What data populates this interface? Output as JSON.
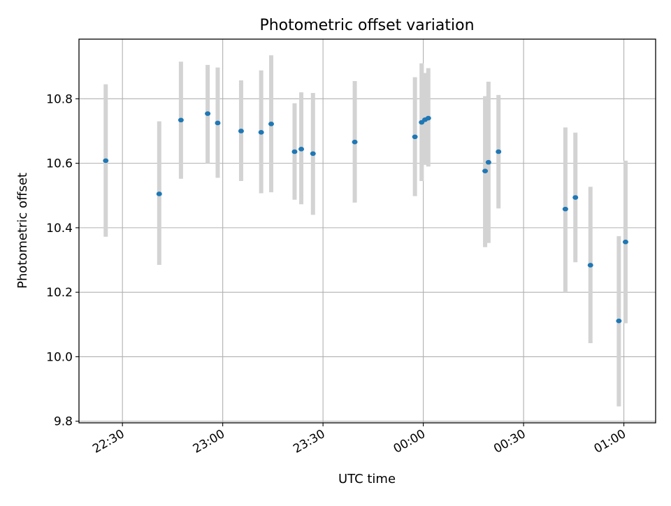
{
  "chart_data": {
    "type": "scatter",
    "title": "Photometric offset variation",
    "xlabel": "UTC time",
    "ylabel": "Photometric offset",
    "x_axis_type": "time",
    "xlim": [
      "22:17:00",
      "01:09:30"
    ],
    "ylim": [
      9.795,
      10.985
    ],
    "x_ticks": [
      {
        "time": "22:30:00",
        "label": "22:30"
      },
      {
        "time": "23:00:00",
        "label": "23:00"
      },
      {
        "time": "23:30:00",
        "label": "23:30"
      },
      {
        "time": "00:00:00",
        "label": "00:00"
      },
      {
        "time": "00:30:00",
        "label": "00:30"
      },
      {
        "time": "01:00:00",
        "label": "01:00"
      }
    ],
    "y_ticks": [
      {
        "value": 9.8,
        "label": "9.8"
      },
      {
        "value": 10.0,
        "label": "10.0"
      },
      {
        "value": 10.2,
        "label": "10.2"
      },
      {
        "value": 10.4,
        "label": "10.4"
      },
      {
        "value": 10.6,
        "label": "10.6"
      },
      {
        "value": 10.8,
        "label": "10.8"
      }
    ],
    "grid": true,
    "x_tick_rotation_deg": -30,
    "series": [
      {
        "marker_color": "#1f77b4",
        "errorbar_color": "#d3d3d3",
        "points": [
          {
            "time": "22:25:00",
            "y": 10.608,
            "yerr_low": 10.372,
            "yerr_high": 10.845
          },
          {
            "time": "22:41:00",
            "y": 10.505,
            "yerr_low": 10.285,
            "yerr_high": 10.73
          },
          {
            "time": "22:47:30",
            "y": 10.734,
            "yerr_low": 10.552,
            "yerr_high": 10.915
          },
          {
            "time": "22:55:30",
            "y": 10.754,
            "yerr_low": 10.6,
            "yerr_high": 10.905
          },
          {
            "time": "22:58:30",
            "y": 10.725,
            "yerr_low": 10.555,
            "yerr_high": 10.897
          },
          {
            "time": "23:05:30",
            "y": 10.7,
            "yerr_low": 10.545,
            "yerr_high": 10.857
          },
          {
            "time": "23:11:30",
            "y": 10.696,
            "yerr_low": 10.507,
            "yerr_high": 10.888
          },
          {
            "time": "23:14:30",
            "y": 10.722,
            "yerr_low": 10.51,
            "yerr_high": 10.935
          },
          {
            "time": "23:21:30",
            "y": 10.636,
            "yerr_low": 10.487,
            "yerr_high": 10.786
          },
          {
            "time": "23:23:30",
            "y": 10.644,
            "yerr_low": 10.473,
            "yerr_high": 10.82
          },
          {
            "time": "23:27:00",
            "y": 10.63,
            "yerr_low": 10.44,
            "yerr_high": 10.818
          },
          {
            "time": "23:39:30",
            "y": 10.666,
            "yerr_low": 10.478,
            "yerr_high": 10.855
          },
          {
            "time": "23:57:30",
            "y": 10.682,
            "yerr_low": 10.498,
            "yerr_high": 10.867
          },
          {
            "time": "23:59:30",
            "y": 10.727,
            "yerr_low": 10.545,
            "yerr_high": 10.91
          },
          {
            "time": "00:00:30",
            "y": 10.735,
            "yerr_low": 10.595,
            "yerr_high": 10.88
          },
          {
            "time": "00:01:30",
            "y": 10.74,
            "yerr_low": 10.59,
            "yerr_high": 10.895
          },
          {
            "time": "00:18:30",
            "y": 10.576,
            "yerr_low": 10.34,
            "yerr_high": 10.808
          },
          {
            "time": "00:19:30",
            "y": 10.603,
            "yerr_low": 10.353,
            "yerr_high": 10.853
          },
          {
            "time": "00:22:30",
            "y": 10.636,
            "yerr_low": 10.46,
            "yerr_high": 10.812
          },
          {
            "time": "00:42:30",
            "y": 10.458,
            "yerr_low": 10.2,
            "yerr_high": 10.711
          },
          {
            "time": "00:45:30",
            "y": 10.494,
            "yerr_low": 10.293,
            "yerr_high": 10.695
          },
          {
            "time": "00:50:00",
            "y": 10.284,
            "yerr_low": 10.042,
            "yerr_high": 10.527
          },
          {
            "time": "00:58:30",
            "y": 10.111,
            "yerr_low": 9.846,
            "yerr_high": 10.374
          },
          {
            "time": "01:00:30",
            "y": 10.356,
            "yerr_low": 10.104,
            "yerr_high": 10.608
          }
        ]
      }
    ]
  }
}
